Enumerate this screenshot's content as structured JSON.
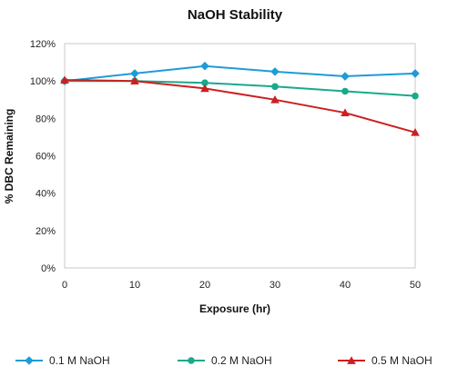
{
  "chart_data": {
    "type": "line",
    "title": "NaOH Stability",
    "xlabel": "Exposure (hr)",
    "ylabel": "% DBC Remaining",
    "x": [
      0,
      10,
      20,
      30,
      40,
      50
    ],
    "xlim": [
      0,
      50
    ],
    "ylim": [
      0,
      120
    ],
    "yticks": [
      0,
      20,
      40,
      60,
      80,
      100,
      120
    ],
    "ytick_labels": [
      "0%",
      "20%",
      "40%",
      "60%",
      "80%",
      "100%",
      "120%"
    ],
    "xtick_labels": [
      "0",
      "10",
      "20",
      "30",
      "40",
      "50"
    ],
    "grid": false,
    "legend_position": "bottom",
    "series": [
      {
        "name": "0.1 M NaOH",
        "color": "#1f9bd7",
        "marker": "diamond",
        "values": [
          100,
          104,
          108,
          105,
          102.5,
          104
        ]
      },
      {
        "name": "0.2 M NaOH",
        "color": "#1aa98a",
        "marker": "circle",
        "values": [
          100,
          100,
          99,
          97,
          94.5,
          92
        ]
      },
      {
        "name": "0.5 M NaOH",
        "color": "#cc1f1f",
        "marker": "triangle",
        "values": [
          100.5,
          100,
          96,
          90,
          83,
          72.5
        ]
      }
    ]
  }
}
